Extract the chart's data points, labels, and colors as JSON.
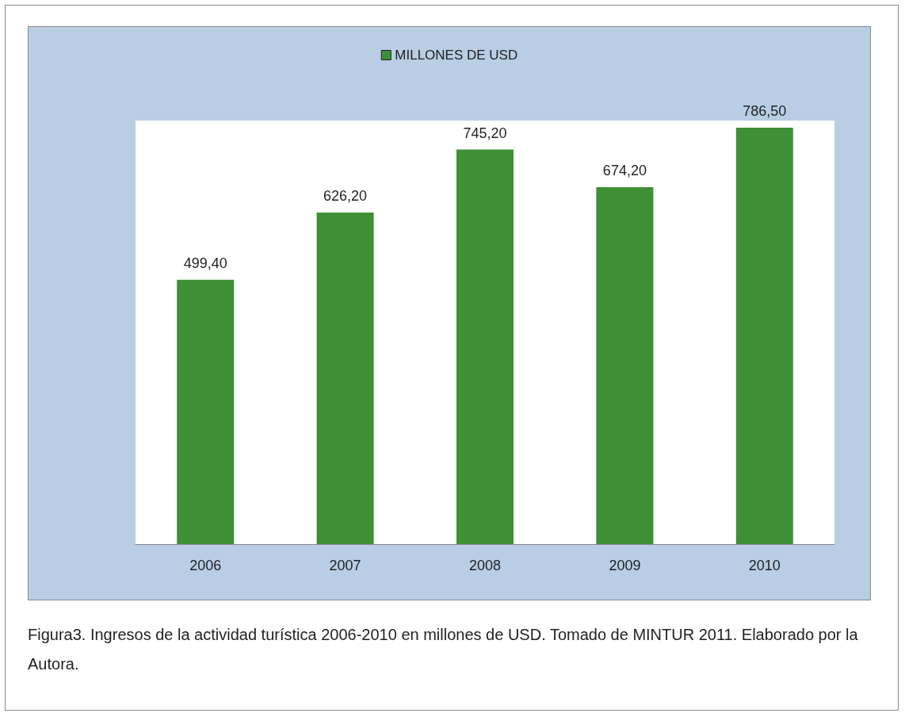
{
  "chart_data": {
    "type": "bar",
    "categories": [
      "2006",
      "2007",
      "2008",
      "2009",
      "2010"
    ],
    "series": [
      {
        "name": "MILLONES DE USD",
        "color": "#3f8f35",
        "values": [
          499.4,
          626.2,
          745.2,
          674.2,
          786.5
        ],
        "value_labels": [
          "499,40",
          "626,20",
          "745,20",
          "674,20",
          "786,50"
        ]
      }
    ],
    "legend": "top",
    "annotations": [
      "Figura3. Ingresos de la actividad turística 2006-2010 en millones de USD. Tomado de MINTUR 2011. Elaborado por la Autora."
    ]
  }
}
